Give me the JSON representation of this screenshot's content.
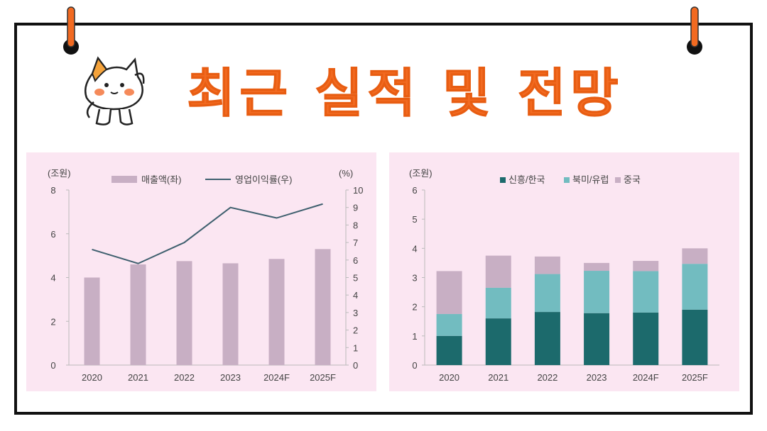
{
  "title": "최근 실적 및 전망",
  "colors": {
    "title": "#f26a21",
    "panel_bg": "#fbe6f2",
    "sales_bar": "#c8afc4",
    "margin_line": "#3e5f6e",
    "korea": "#1c6a6c",
    "na_eu": "#72bcc0",
    "china": "#c8afc4"
  },
  "chart_data": [
    {
      "type": "bar",
      "left_unit": "(조원)",
      "right_unit": "(%)",
      "categories": [
        "2020",
        "2021",
        "2022",
        "2023",
        "2024F",
        "2025F"
      ],
      "series": [
        {
          "name": "매출액(좌)",
          "type": "bar",
          "axis": "left",
          "values": [
            4.0,
            4.6,
            4.75,
            4.65,
            4.85,
            5.3
          ]
        },
        {
          "name": "영업이익률(우)",
          "type": "line",
          "axis": "right",
          "values": [
            6.6,
            5.8,
            7.0,
            9.0,
            8.4,
            9.2
          ]
        }
      ],
      "ylim_left": [
        0,
        8
      ],
      "yticks_left": [
        "0",
        "2",
        "4",
        "6",
        "8"
      ],
      "ylim_right": [
        0,
        10
      ],
      "yticks_right": [
        "0",
        "1",
        "2",
        "3",
        "4",
        "5",
        "6",
        "7",
        "8",
        "9",
        "10"
      ],
      "legend": "top-center",
      "grid": false
    },
    {
      "type": "bar",
      "stacked": true,
      "left_unit": "(조원)",
      "categories": [
        "2020",
        "2021",
        "2022",
        "2023",
        "2024F",
        "2025F"
      ],
      "series": [
        {
          "name": "신흥/한국",
          "values": [
            1.0,
            1.6,
            1.82,
            1.78,
            1.8,
            1.9
          ]
        },
        {
          "name": "북미/유럽",
          "values": [
            0.75,
            1.05,
            1.3,
            1.45,
            1.42,
            1.57
          ]
        },
        {
          "name": "중국",
          "values": [
            1.47,
            1.1,
            0.6,
            0.27,
            0.35,
            0.53
          ]
        }
      ],
      "ylim": [
        0,
        6
      ],
      "yticks": [
        "0",
        "1",
        "2",
        "3",
        "4",
        "5",
        "6"
      ],
      "legend": "top-center",
      "grid": false
    }
  ]
}
